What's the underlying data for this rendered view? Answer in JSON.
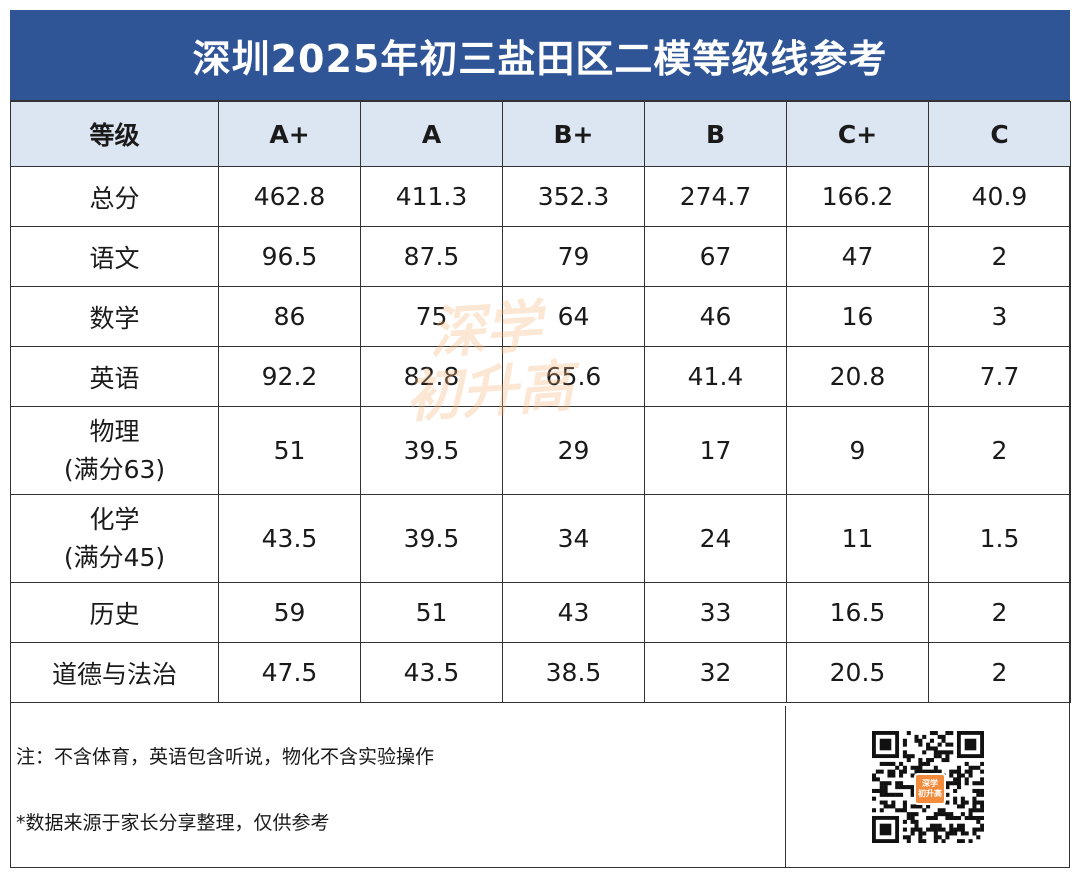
{
  "title": "深圳2025年初三盐田区二模等级线参考",
  "header": [
    "等级",
    "A+",
    "A",
    "B+",
    "B",
    "C+",
    "C"
  ],
  "rows": [
    {
      "subject": "总分",
      "sub": "",
      "values": [
        "462.8",
        "411.3",
        "352.3",
        "274.7",
        "166.2",
        "40.9"
      ]
    },
    {
      "subject": "语文",
      "sub": "",
      "values": [
        "96.5",
        "87.5",
        "79",
        "67",
        "47",
        "2"
      ]
    },
    {
      "subject": "数学",
      "sub": "",
      "values": [
        "86",
        "75",
        "64",
        "46",
        "16",
        "3"
      ]
    },
    {
      "subject": "英语",
      "sub": "",
      "values": [
        "92.2",
        "82.8",
        "65.6",
        "41.4",
        "20.8",
        "7.7"
      ]
    },
    {
      "subject": "物理",
      "sub": "(满分63)",
      "values": [
        "51",
        "39.5",
        "29",
        "17",
        "9",
        "2"
      ]
    },
    {
      "subject": "化学",
      "sub": "(满分45)",
      "values": [
        "43.5",
        "39.5",
        "34",
        "24",
        "11",
        "1.5"
      ]
    },
    {
      "subject": "历史",
      "sub": "",
      "values": [
        "59",
        "51",
        "43",
        "33",
        "16.5",
        "2"
      ]
    },
    {
      "subject": "道德与法治",
      "sub": "",
      "values": [
        "47.5",
        "43.5",
        "38.5",
        "32",
        "20.5",
        "2"
      ]
    }
  ],
  "footer": {
    "note1": "注：不含体育，英语包含听说，物化不含实验操作",
    "note2": "*数据来源于家长分享整理，仅供参考"
  },
  "qr_badge": [
    "深学",
    "初升高"
  ],
  "watermark": [
    "深学",
    "初升高"
  ],
  "colors": {
    "title_bg": "#2f5597",
    "header_bg": "#dce6f2",
    "accent": "#f28b3b"
  }
}
